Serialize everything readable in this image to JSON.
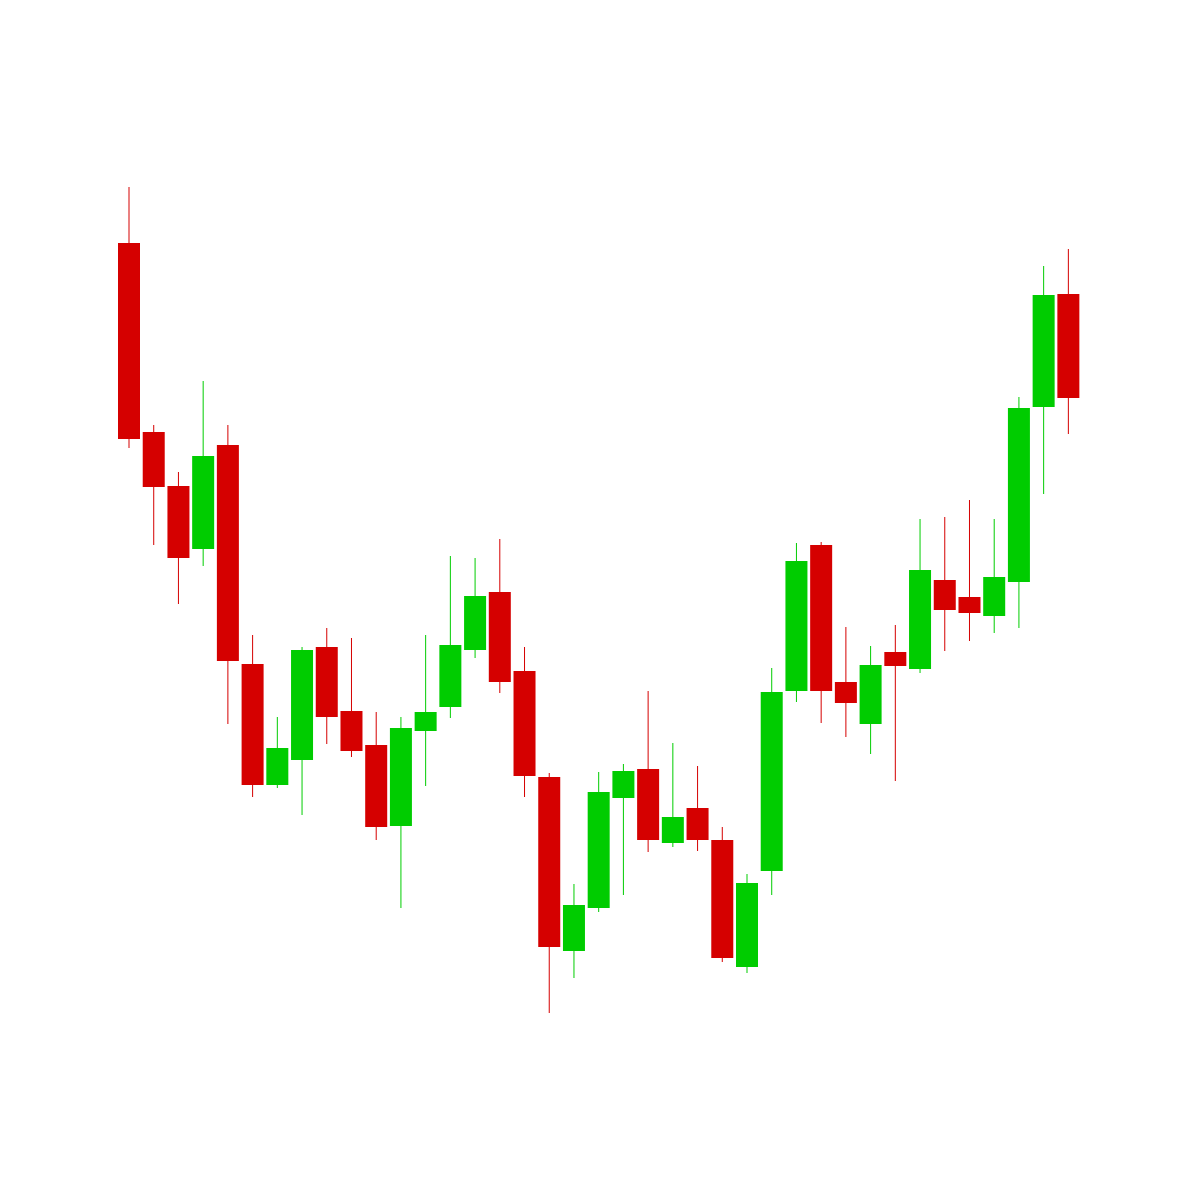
{
  "chart_data": {
    "type": "candlestick",
    "up_color": "#00cc00",
    "down_color": "#d50000",
    "ylim": [
      0,
      100
    ],
    "open": [
      85.7,
      66.8,
      61.4,
      55.1,
      65.5,
      43.6,
      31.5,
      34.0,
      45.3,
      38.9,
      35.5,
      27.4,
      36.9,
      39.3,
      45.0,
      50.8,
      42.9,
      32.3,
      14.9,
      19.2,
      30.2,
      33.1,
      25.7,
      29.2,
      26.0,
      13.3,
      22.9,
      40.9,
      55.5,
      41.8,
      37.6,
      44.8,
      43.1,
      52.0,
      50.3,
      48.4,
      51.8,
      69.3,
      80.6
    ],
    "high": [
      91.3,
      67.5,
      62.8,
      71.9,
      67.5,
      46.5,
      38.3,
      45.3,
      47.2,
      46.2,
      38.8,
      38.3,
      46.5,
      54.4,
      54.2,
      56.1,
      45.3,
      32.7,
      21.6,
      32.8,
      33.6,
      40.9,
      35.7,
      33.4,
      27.3,
      22.6,
      43.2,
      55.7,
      55.8,
      47.3,
      45.4,
      47.5,
      58.1,
      58.3,
      60.0,
      58.1,
      70.3,
      83.4,
      85.1
    ],
    "low": [
      65.2,
      55.5,
      49.6,
      53.4,
      37.6,
      30.3,
      31.2,
      28.5,
      35.6,
      34.3,
      26.0,
      19.2,
      31.4,
      38.2,
      44.2,
      40.7,
      30.3,
      8.7,
      12.2,
      18.8,
      20.5,
      24.8,
      25.3,
      24.9,
      13.8,
      12.7,
      20.5,
      39.8,
      37.7,
      36.3,
      34.6,
      31.9,
      42.7,
      44.9,
      45.9,
      46.7,
      47.2,
      60.6,
      66.6
    ],
    "close": [
      66.1,
      61.3,
      54.2,
      64.4,
      43.9,
      31.5,
      35.2,
      45.0,
      38.3,
      34.9,
      27.3,
      37.2,
      38.8,
      45.5,
      50.4,
      41.8,
      32.4,
      15.3,
      19.5,
      30.8,
      32.9,
      26.0,
      28.3,
      26.0,
      14.2,
      21.7,
      40.8,
      53.9,
      40.9,
      39.7,
      43.5,
      43.4,
      53.0,
      49.0,
      48.7,
      52.3,
      69.2,
      80.5,
      70.2
    ]
  }
}
